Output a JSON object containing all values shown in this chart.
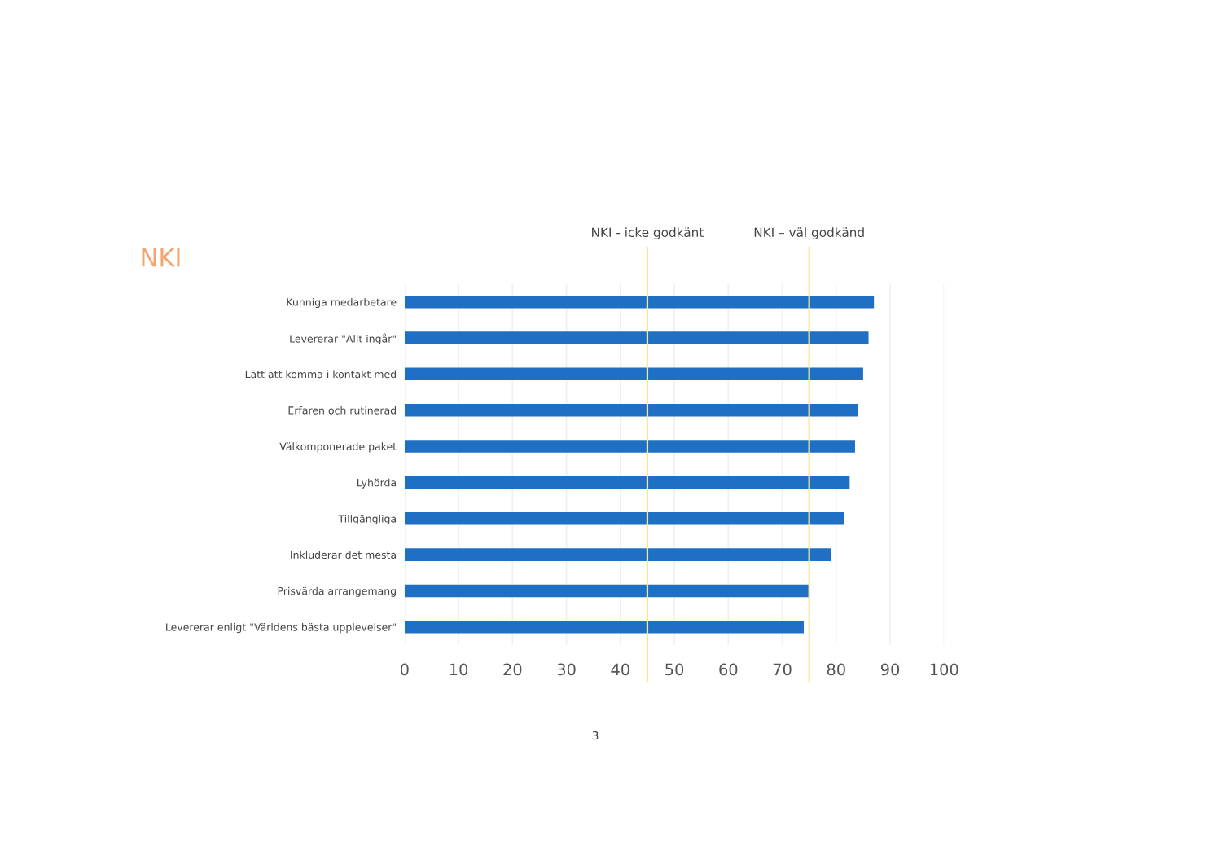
{
  "chart_data": {
    "type": "bar",
    "orientation": "horizontal",
    "title": "NKI",
    "categories": [
      "Kunniga medarbetare",
      "Levererar \"Allt ingår\"",
      "Lätt att komma i kontakt med",
      "Erfaren och rutinerad",
      "Välkomponerade paket",
      "Lyhörda",
      "Tillgängliga",
      "Inkluderar det mesta",
      "Prisvärda arrangemang",
      "Levererar enligt \"Världens bästa upplevelser\""
    ],
    "values": [
      87,
      86,
      85,
      84,
      83.5,
      82.5,
      81.5,
      79,
      75,
      74
    ],
    "color": "#1f6fc5",
    "xlim": [
      0,
      100
    ],
    "xticks": [
      0,
      10,
      20,
      30,
      40,
      50,
      60,
      70,
      80,
      90,
      100
    ],
    "grid": "x",
    "ref_lines": [
      {
        "axis": "x",
        "value": 45,
        "label": "NKI - icke godkänt",
        "color": "#f5e79a"
      },
      {
        "axis": "x",
        "value": 75,
        "label": "NKI – väl godkänd",
        "color": "#f5e79a"
      }
    ],
    "annotations": [
      "3"
    ]
  }
}
